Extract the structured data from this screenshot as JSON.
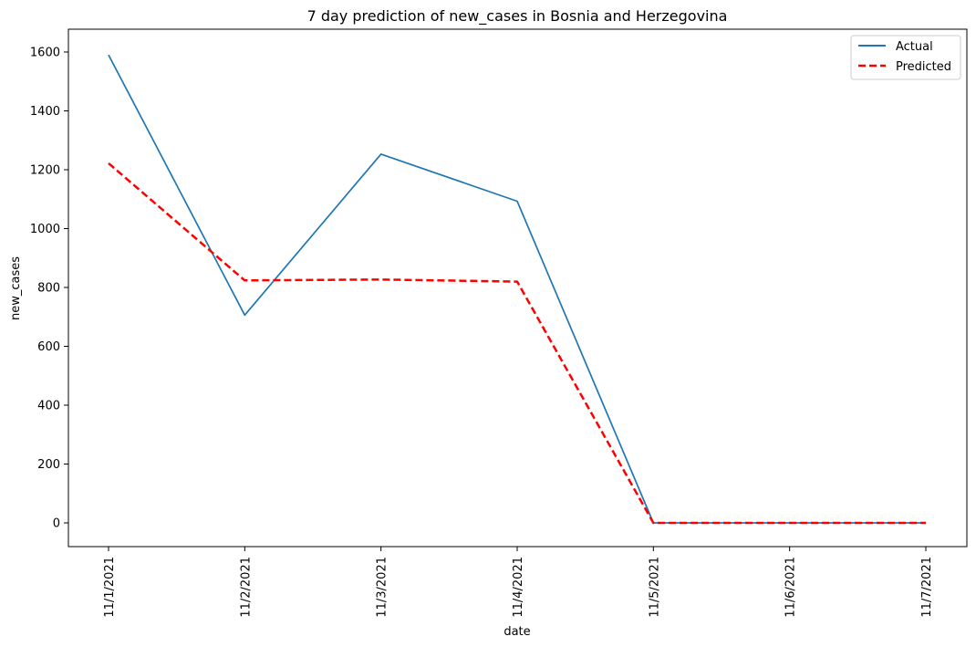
{
  "chart_data": {
    "type": "line",
    "title": "7 day prediction of new_cases in Bosnia and Herzegovina",
    "xlabel": "date",
    "ylabel": "new_cases",
    "categories": [
      "11/1/2021",
      "11/2/2021",
      "11/3/2021",
      "11/4/2021",
      "11/5/2021",
      "11/6/2021",
      "11/7/2021"
    ],
    "yticks": [
      0,
      200,
      400,
      600,
      800,
      1000,
      1200,
      1400,
      1600
    ],
    "ylim": [
      -80,
      1670
    ],
    "grid": false,
    "legend_position": "top-right",
    "series": [
      {
        "name": "Actual",
        "color": "#1f77b4",
        "style": "solid",
        "values": [
          1590,
          706,
          1253,
          1093,
          0,
          0,
          0
        ]
      },
      {
        "name": "Predicted",
        "color": "#ff0000",
        "style": "dashed",
        "values": [
          1222,
          824,
          827,
          820,
          0,
          0,
          0
        ]
      }
    ]
  }
}
